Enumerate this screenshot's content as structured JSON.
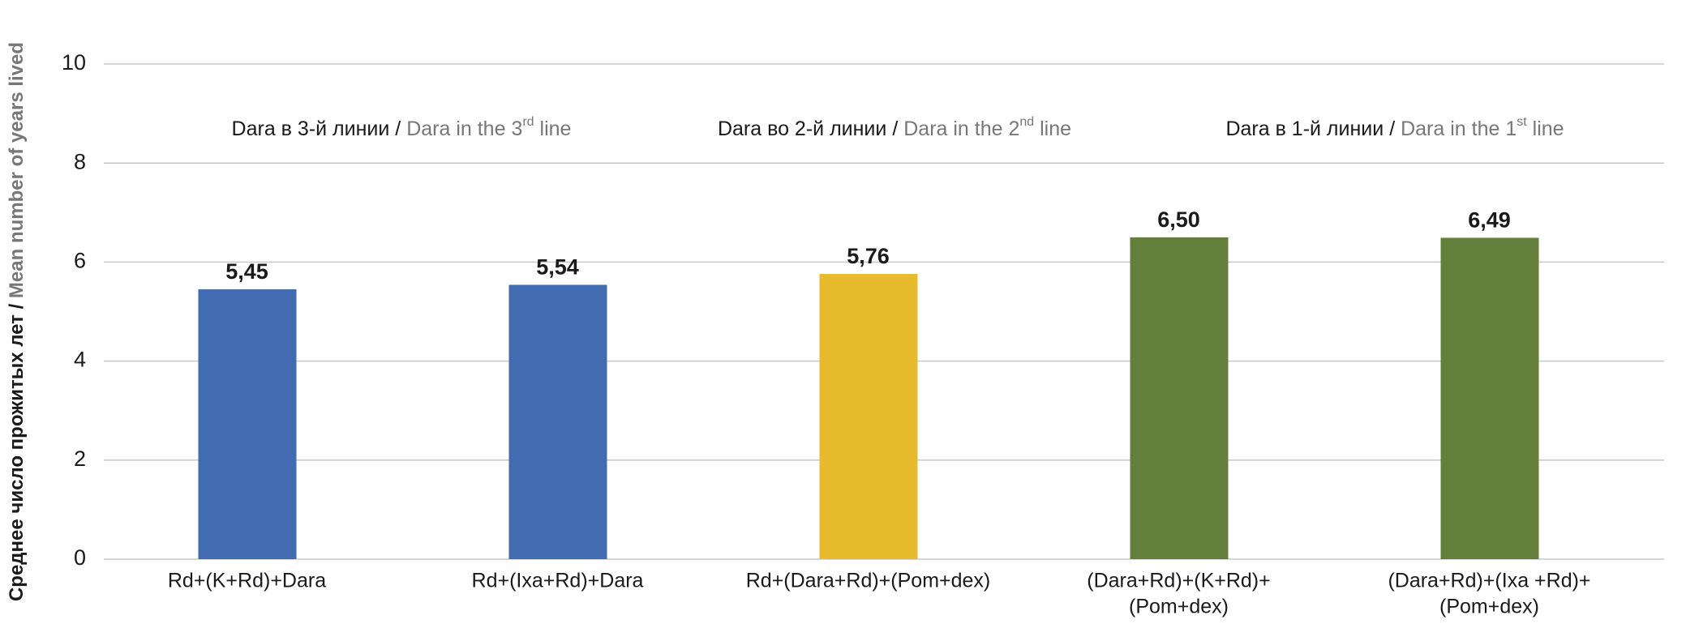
{
  "chart_data": {
    "type": "bar",
    "y_label": {
      "ru": "Среднее число прожитых лет",
      "separator": "/",
      "en": "Mean number of years lived"
    },
    "groups": [
      {
        "ru": "Dara в 3-й линии",
        "separator": "/",
        "en": "Dara in the 3",
        "sup": "rd",
        "en_end": "line"
      },
      {
        "ru": "Dara во 2-й линии",
        "separator": "/",
        "en": "Dara in the 2",
        "sup": "nd",
        "en_end": "line"
      },
      {
        "ru": "Dara в 1-й линии",
        "separator": "/",
        "en": "Dara in the 1",
        "sup": "st",
        "en_end": "line"
      }
    ],
    "categories": [
      [
        "Rd+(K+Rd)+Dara"
      ],
      [
        "Rd+(Ixa+Rd)+Dara"
      ],
      [
        "Rd+(Dara+Rd)+(Pom+dex)"
      ],
      [
        "(Dara+Rd)+(K+Rd)+",
        "(Pom+dex)"
      ],
      [
        "(Dara+Rd)+(Ixa +Rd)+",
        "(Pom+dex)"
      ]
    ],
    "values": [
      5.45,
      5.54,
      5.76,
      6.5,
      6.49
    ],
    "value_labels": [
      "5,45",
      "5,54",
      "5,76",
      "6,50",
      "6,49"
    ],
    "colors": [
      "#416cb1",
      "#416cb1",
      "#e8bb2f",
      "#647f3c",
      "#647f3c"
    ],
    "ylim": [
      0,
      10
    ],
    "yticks": [
      0,
      2,
      4,
      6,
      8,
      10
    ],
    "grid": true
  }
}
